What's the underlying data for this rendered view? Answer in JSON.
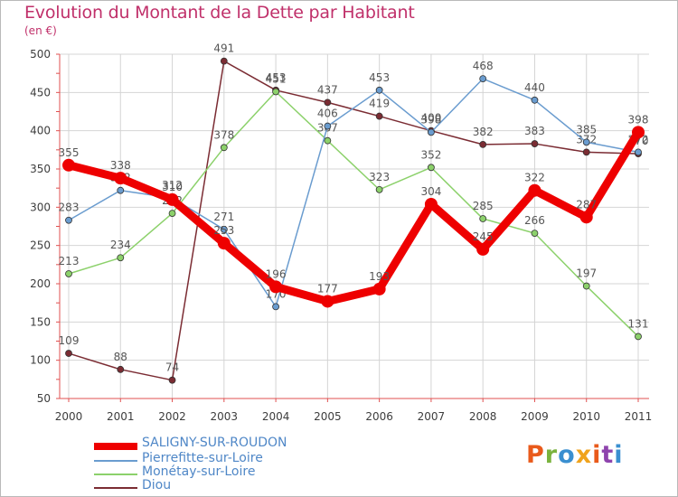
{
  "title": "Evolution du Montant de la Dette par Habitant",
  "subtitle": "(en €)",
  "logo": {
    "text": "Proxiti",
    "colors": [
      "#e95a1b",
      "#7ab33e",
      "#3a8fd0",
      "#f0a31c",
      "#e95a1b",
      "#8e44ad",
      "#3a8fd0"
    ]
  },
  "chart_data": {
    "type": "line",
    "x": [
      "2000",
      "2001",
      "2002",
      "2003",
      "2004",
      "2005",
      "2006",
      "2007",
      "2008",
      "2009",
      "2010",
      "2011"
    ],
    "ylim": [
      50,
      500
    ],
    "yticks": [
      50,
      100,
      150,
      200,
      250,
      300,
      350,
      400,
      450,
      500
    ],
    "grid": true,
    "legend_position": "bottom-left",
    "series": [
      {
        "name": "Diou",
        "color": "#7b2c33",
        "values": [
          109,
          88,
          74,
          491,
          453,
          437,
          419,
          400,
          382,
          383,
          372,
          370
        ]
      },
      {
        "name": "Monétay-sur-Loire",
        "color": "#8cd16b",
        "values": [
          213,
          234,
          292,
          378,
          451,
          387,
          323,
          352,
          285,
          266,
          197,
          131
        ]
      },
      {
        "name": "Pierrefitte-sur-Loire",
        "color": "#6a9ccf",
        "values": [
          283,
          322,
          312,
          271,
          170,
          406,
          453,
          398,
          468,
          440,
          385,
          372
        ]
      },
      {
        "name": "SALIGNY-SUR-ROUDON",
        "color": "#ee0000",
        "values": [
          355,
          338,
          310,
          253,
          196,
          177,
          193,
          304,
          245,
          322,
          287,
          398
        ]
      }
    ]
  },
  "legend": [
    {
      "label": "SALIGNY-SUR-ROUDON",
      "color": "#ee0000"
    },
    {
      "label": "Pierrefitte-sur-Loire",
      "color": "#6a9ccf"
    },
    {
      "label": "Monétay-sur-Loire",
      "color": "#8cd16b"
    },
    {
      "label": "Diou",
      "color": "#7b2c33"
    }
  ]
}
